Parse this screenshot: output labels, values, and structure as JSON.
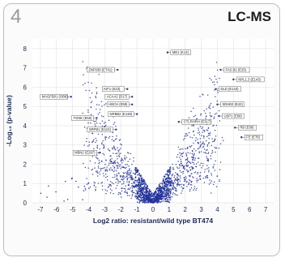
{
  "panel": {
    "number": "4",
    "title": "LC-MS"
  },
  "chart_data": {
    "type": "scatter",
    "title": "",
    "xlabel": "Log2 ratio: resistant/wild type BT474",
    "ylabel": "-Log₁₀ (p-value)",
    "xlim": [
      -7.5,
      7.5
    ],
    "ylim": [
      0,
      8.5
    ],
    "x_ticks": [
      "-7",
      "-6",
      "-5",
      "-4",
      "-3",
      "-2",
      "-1",
      "0",
      "1",
      "2",
      "3",
      "4",
      "5",
      "6",
      "7"
    ],
    "y_ticks": [
      "0",
      "1",
      "2",
      "3",
      "4",
      "5",
      "6",
      "7",
      "8"
    ],
    "grid": true,
    "point_color": "#24339a",
    "label_color": "#444444",
    "labeled_points": [
      {
        "label": "ZNF638 (ET41)",
        "x": -2.2,
        "y": 6.9
      },
      {
        "label": "ME1 (K13)",
        "x": 0.9,
        "y": 7.8
      },
      {
        "label": "MAGFB01 (OB8)",
        "x": -5.1,
        "y": 5.5
      },
      {
        "label": "KIF1 (E23)",
        "x": -1.6,
        "y": 5.9
      },
      {
        "label": "ACAA2 (D17)",
        "x": -1.3,
        "y": 5.5
      },
      {
        "label": "HBCH (E59)",
        "x": -1.3,
        "y": 5.1
      },
      {
        "label": "NRBB2 (E138)",
        "x": -1.0,
        "y": 4.6
      },
      {
        "label": "TGNE (E56)",
        "x": -3.5,
        "y": 4.4
      },
      {
        "label": "SRPB1 (E110)",
        "x": -2.3,
        "y": 3.8
      },
      {
        "label": "MBN2 (E267)",
        "x": -3.3,
        "y": 2.6
      },
      {
        "label": "CTLRHRH (E317)",
        "x": 1.6,
        "y": 4.2
      },
      {
        "label": "FAS.B2 (E25)",
        "x": 4.2,
        "y": 6.9
      },
      {
        "label": "NPL1.3 (E143)",
        "x": 5.0,
        "y": 6.4
      },
      {
        "label": "DLD (E143)",
        "x": 3.9,
        "y": 5.9
      },
      {
        "label": "SDHB3 (E42)",
        "x": 4.0,
        "y": 5.1
      },
      {
        "label": "USP1 (E68)",
        "x": 4.1,
        "y": 4.5
      },
      {
        "label": "RB (E68)",
        "x": 5.1,
        "y": 3.9
      },
      {
        "label": "FE (E78)",
        "x": 5.5,
        "y": 3.4
      }
    ]
  }
}
